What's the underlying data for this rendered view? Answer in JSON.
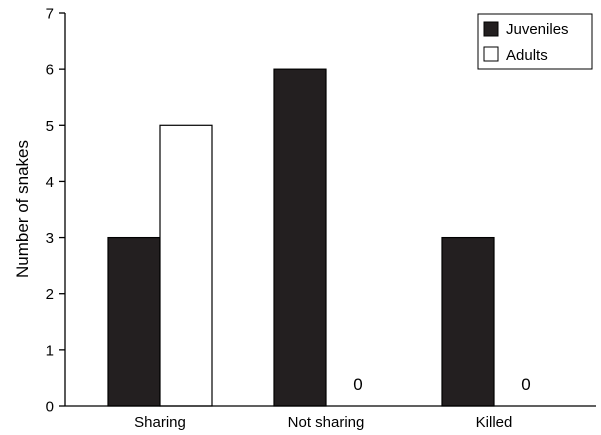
{
  "chart_data": {
    "type": "bar",
    "title": "",
    "xlabel": "",
    "ylabel": "Number of snakes",
    "ylim": [
      0,
      7
    ],
    "yticks": [
      "0",
      "1",
      "2",
      "3",
      "4",
      "5",
      "6",
      "7"
    ],
    "categories": [
      "Sharing",
      "Not sharing",
      "Killed"
    ],
    "series": [
      {
        "name": "Juveniles",
        "values": [
          3,
          6,
          3
        ],
        "color": "#231f20"
      },
      {
        "name": "Adults",
        "values": [
          5,
          0,
          0
        ],
        "color": "#ffffff"
      }
    ],
    "annotations": [
      {
        "category": "Not sharing",
        "series": "Adults",
        "text": "0"
      },
      {
        "category": "Killed",
        "series": "Adults",
        "text": "0"
      }
    ],
    "grid": false,
    "legend": "top-right"
  }
}
